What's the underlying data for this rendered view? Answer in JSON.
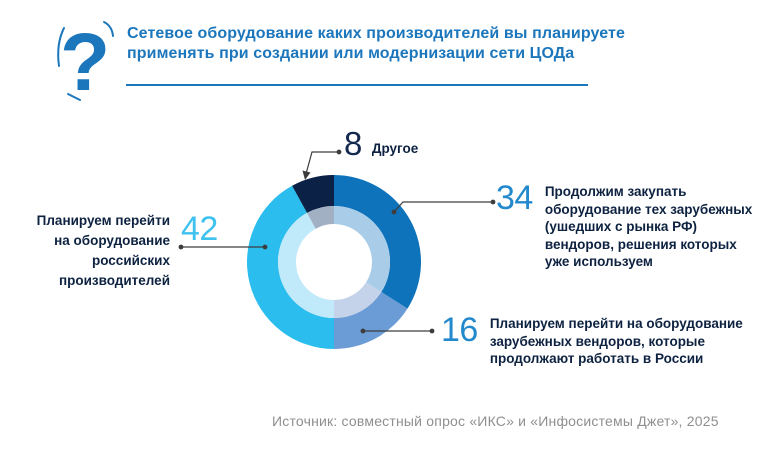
{
  "header": {
    "title": "Сетевое оборудование каких производителей вы планируете\nприменять при создании или модернизации сети ЦОДа"
  },
  "colors": {
    "accent_blue": "#1b76bc",
    "navy_text": "#0d2240",
    "connector_gray": "#3d3d3d",
    "source_gray": "#8f8f8f"
  },
  "chart_data": {
    "type": "pie",
    "subtype": "donut",
    "units": "percent",
    "total": 100,
    "direction": "clockwise",
    "start_angle_deg": 0,
    "legend_position": "callouts",
    "segments": [
      {
        "value": 34,
        "label": "Продолжим закупать\nоборудование тех зарубежных\n(ушедших с рынка РФ)\nвендоров, решения которых\nуже используем",
        "color": "#0e73ba",
        "inner_color": "#a9cde9",
        "number_color": "#2289cd"
      },
      {
        "value": 16,
        "label": "Планируем перейти на оборудование\nзарубежных вендоров, которые\nпродолжают работать в России",
        "color": "#6b9cd5",
        "inner_color": "#c4d3e9",
        "number_color": "#2289cd"
      },
      {
        "value": 42,
        "label": "Планируем перейти\nна оборудование\nроссийских\nпроизводителей",
        "color": "#2abdee",
        "inner_color": "#c0e9fa",
        "number_color": "#3fc2ee"
      },
      {
        "value": 8,
        "label": "Другое",
        "color": "#0b2145",
        "inner_color": "#a2b0c4",
        "number_color": "#13294e"
      }
    ]
  },
  "footer": {
    "source": "Источник: совместный опрос «ИКС» и «Инфосистемы Джет», 2025"
  }
}
